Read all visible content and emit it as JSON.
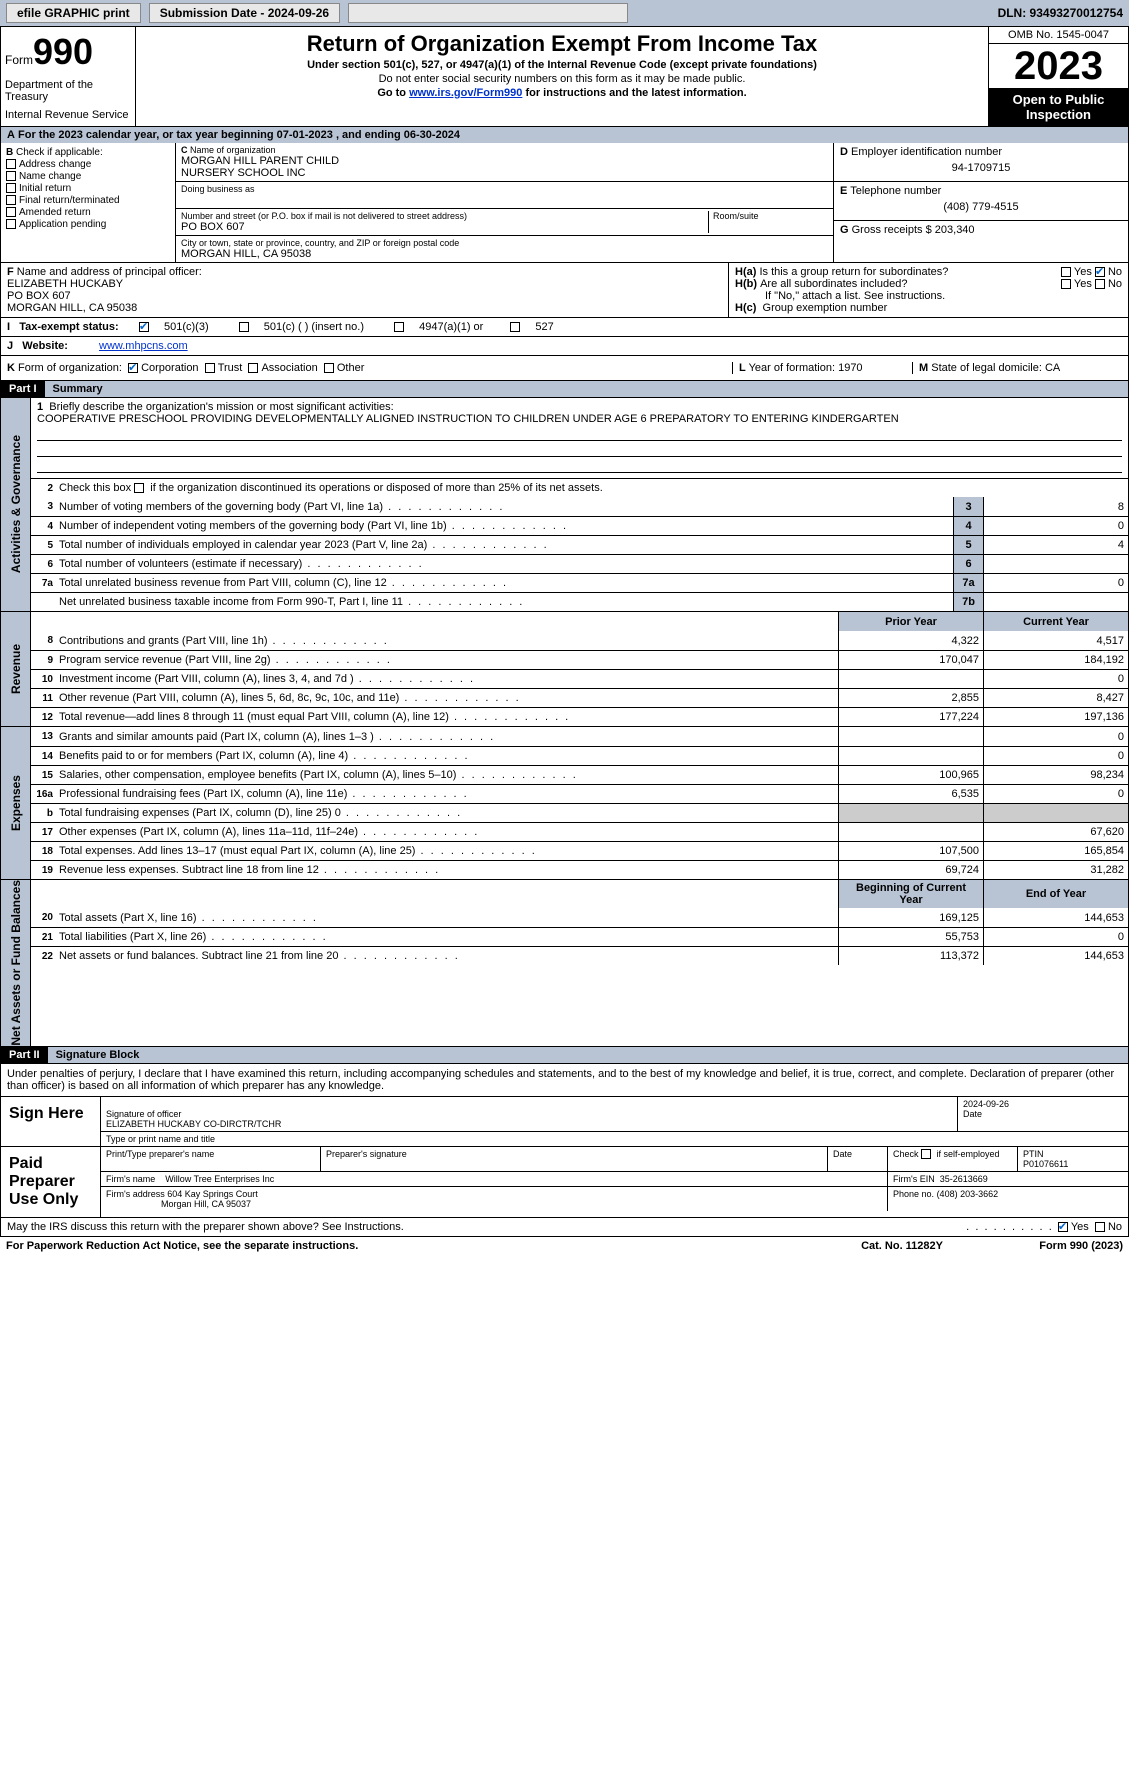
{
  "topbar": {
    "efile": "efile GRAPHIC print",
    "submission": "Submission Date - 2024-09-26",
    "dln": "DLN: 93493270012754"
  },
  "header": {
    "form_word": "Form",
    "form_num": "990",
    "title": "Return of Organization Exempt From Income Tax",
    "subtitle": "Under section 501(c), 527, or 4947(a)(1) of the Internal Revenue Code (except private foundations)",
    "note1": "Do not enter social security numbers on this form as it may be made public.",
    "note2_pre": "Go to ",
    "note2_link": "www.irs.gov/Form990",
    "note2_post": " for instructions and the latest information.",
    "dept": "Department of the Treasury",
    "irs": "Internal Revenue Service",
    "omb": "OMB No. 1545-0047",
    "year": "2023",
    "open": "Open to Public Inspection"
  },
  "A": {
    "text": "For the 2023 calendar year, or tax year beginning 07-01-2023   , and ending 06-30-2024"
  },
  "B": {
    "label": "Check if applicable:",
    "opts": [
      "Address change",
      "Name change",
      "Initial return",
      "Final return/terminated",
      "Amended return",
      "Application pending"
    ]
  },
  "C": {
    "name_lbl": "Name of organization",
    "name1": "MORGAN HILL PARENT CHILD",
    "name2": "NURSERY SCHOOL INC",
    "dba_lbl": "Doing business as",
    "addr_lbl": "Number and street (or P.O. box if mail is not delivered to street address)",
    "room_lbl": "Room/suite",
    "addr": "PO BOX 607",
    "city_lbl": "City or town, state or province, country, and ZIP or foreign postal code",
    "city": "MORGAN HILL, CA  95038"
  },
  "D": {
    "lbl": "Employer identification number",
    "val": "94-1709715"
  },
  "E": {
    "lbl": "Telephone number",
    "val": "(408) 779-4515"
  },
  "G": {
    "lbl": "Gross receipts $",
    "val": "203,340"
  },
  "F": {
    "lbl": "Name and address of principal officer:",
    "l1": "ELIZABETH HUCKABY",
    "l2": "PO BOX 607",
    "l3": "MORGAN HILL, CA  95038"
  },
  "H": {
    "a": "Is this a group return for subordinates?",
    "b": "Are all subordinates included?",
    "b_note": "If \"No,\" attach a list. See instructions.",
    "c": "Group exemption number",
    "yes": "Yes",
    "no": "No"
  },
  "I": {
    "lbl": "Tax-exempt status:",
    "o1": "501(c)(3)",
    "o2": "501(c) (  ) (insert no.)",
    "o3": "4947(a)(1) or",
    "o4": "527"
  },
  "J": {
    "lbl": "Website:",
    "val": "www.mhpcns.com"
  },
  "K": {
    "lbl": "Form of organization:",
    "o1": "Corporation",
    "o2": "Trust",
    "o3": "Association",
    "o4": "Other"
  },
  "L": {
    "lbl": "Year of formation:",
    "val": "1970"
  },
  "M": {
    "lbl": "State of legal domicile:",
    "val": "CA"
  },
  "part1": {
    "hdr": "Part I",
    "title": "Summary",
    "l1_lbl": "Briefly describe the organization's mission or most significant activities:",
    "l1_txt": "COOPERATIVE PRESCHOOL PROVIDING DEVELOPMENTALLY ALIGNED INSTRUCTION TO CHILDREN UNDER AGE 6 PREPARATORY TO ENTERING KINDERGARTEN",
    "l2": "Check this box         if the organization discontinued its operations or disposed of more than 25% of its net assets.",
    "side_ag": "Activities & Governance",
    "side_rev": "Revenue",
    "side_exp": "Expenses",
    "side_na": "Net Assets or Fund Balances",
    "lines_ag": [
      {
        "n": "3",
        "d": "Number of voting members of the governing body (Part VI, line 1a)",
        "box": "3",
        "v": "8"
      },
      {
        "n": "4",
        "d": "Number of independent voting members of the governing body (Part VI, line 1b)",
        "box": "4",
        "v": "0"
      },
      {
        "n": "5",
        "d": "Total number of individuals employed in calendar year 2023 (Part V, line 2a)",
        "box": "5",
        "v": "4"
      },
      {
        "n": "6",
        "d": "Total number of volunteers (estimate if necessary)",
        "box": "6",
        "v": ""
      },
      {
        "n": "7a",
        "d": "Total unrelated business revenue from Part VIII, column (C), line 12",
        "box": "7a",
        "v": "0"
      },
      {
        "n": "",
        "d": "Net unrelated business taxable income from Form 990-T, Part I, line 11",
        "box": "7b",
        "v": ""
      }
    ],
    "col_prior": "Prior Year",
    "col_current": "Current Year",
    "lines_rev": [
      {
        "n": "8",
        "d": "Contributions and grants (Part VIII, line 1h)",
        "p": "4,322",
        "c": "4,517"
      },
      {
        "n": "9",
        "d": "Program service revenue (Part VIII, line 2g)",
        "p": "170,047",
        "c": "184,192"
      },
      {
        "n": "10",
        "d": "Investment income (Part VIII, column (A), lines 3, 4, and 7d )",
        "p": "",
        "c": "0"
      },
      {
        "n": "11",
        "d": "Other revenue (Part VIII, column (A), lines 5, 6d, 8c, 9c, 10c, and 11e)",
        "p": "2,855",
        "c": "8,427"
      },
      {
        "n": "12",
        "d": "Total revenue—add lines 8 through 11 (must equal Part VIII, column (A), line 12)",
        "p": "177,224",
        "c": "197,136"
      }
    ],
    "lines_exp": [
      {
        "n": "13",
        "d": "Grants and similar amounts paid (Part IX, column (A), lines 1–3 )",
        "p": "",
        "c": "0"
      },
      {
        "n": "14",
        "d": "Benefits paid to or for members (Part IX, column (A), line 4)",
        "p": "",
        "c": "0"
      },
      {
        "n": "15",
        "d": "Salaries, other compensation, employee benefits (Part IX, column (A), lines 5–10)",
        "p": "100,965",
        "c": "98,234"
      },
      {
        "n": "16a",
        "d": "Professional fundraising fees (Part IX, column (A), line 11e)",
        "p": "6,535",
        "c": "0"
      },
      {
        "n": "b",
        "d": "Total fundraising expenses (Part IX, column (D), line 25) 0",
        "p": "grey",
        "c": "grey"
      },
      {
        "n": "17",
        "d": "Other expenses (Part IX, column (A), lines 11a–11d, 11f–24e)",
        "p": "",
        "c": "67,620"
      },
      {
        "n": "18",
        "d": "Total expenses. Add lines 13–17 (must equal Part IX, column (A), line 25)",
        "p": "107,500",
        "c": "165,854"
      },
      {
        "n": "19",
        "d": "Revenue less expenses. Subtract line 18 from line 12",
        "p": "69,724",
        "c": "31,282"
      }
    ],
    "col_begin": "Beginning of Current Year",
    "col_end": "End of Year",
    "lines_na": [
      {
        "n": "20",
        "d": "Total assets (Part X, line 16)",
        "p": "169,125",
        "c": "144,653"
      },
      {
        "n": "21",
        "d": "Total liabilities (Part X, line 26)",
        "p": "55,753",
        "c": "0"
      },
      {
        "n": "22",
        "d": "Net assets or fund balances. Subtract line 21 from line 20",
        "p": "113,372",
        "c": "144,653"
      }
    ]
  },
  "part2": {
    "hdr": "Part II",
    "title": "Signature Block",
    "intro": "Under penalties of perjury, I declare that I have examined this return, including accompanying schedules and statements, and to the best of my knowledge and belief, it is true, correct, and complete. Declaration of preparer (other than officer) is based on all information of which preparer has any knowledge.",
    "sign_here": "Sign Here",
    "sig_officer_lbl": "Signature of officer",
    "sig_date": "2024-09-26",
    "date_lbl": "Date",
    "officer": "ELIZABETH HUCKABY CO-DIRCTR/TCHR",
    "type_lbl": "Type or print name and title",
    "paid": "Paid Preparer Use Only",
    "prep_name_lbl": "Print/Type preparer's name",
    "prep_sig_lbl": "Preparer's signature",
    "check_self": "Check         if self-employed",
    "ptin_lbl": "PTIN",
    "ptin": "P01076611",
    "firm_name_lbl": "Firm's name",
    "firm_name": "Willow Tree Enterprises Inc",
    "firm_ein_lbl": "Firm's EIN",
    "firm_ein": "35-2613669",
    "firm_addr_lbl": "Firm's address",
    "firm_addr1": "604 Kay Springs Court",
    "firm_addr2": "Morgan Hill, CA  95037",
    "phone_lbl": "Phone no.",
    "phone": "(408) 203-3662"
  },
  "footer": {
    "discuss": "May the IRS discuss this return with the preparer shown above? See Instructions.",
    "yes": "Yes",
    "no": "No",
    "paperwork": "For Paperwork Reduction Act Notice, see the separate instructions.",
    "cat": "Cat. No. 11282Y",
    "form": "Form 990 (2023)"
  }
}
